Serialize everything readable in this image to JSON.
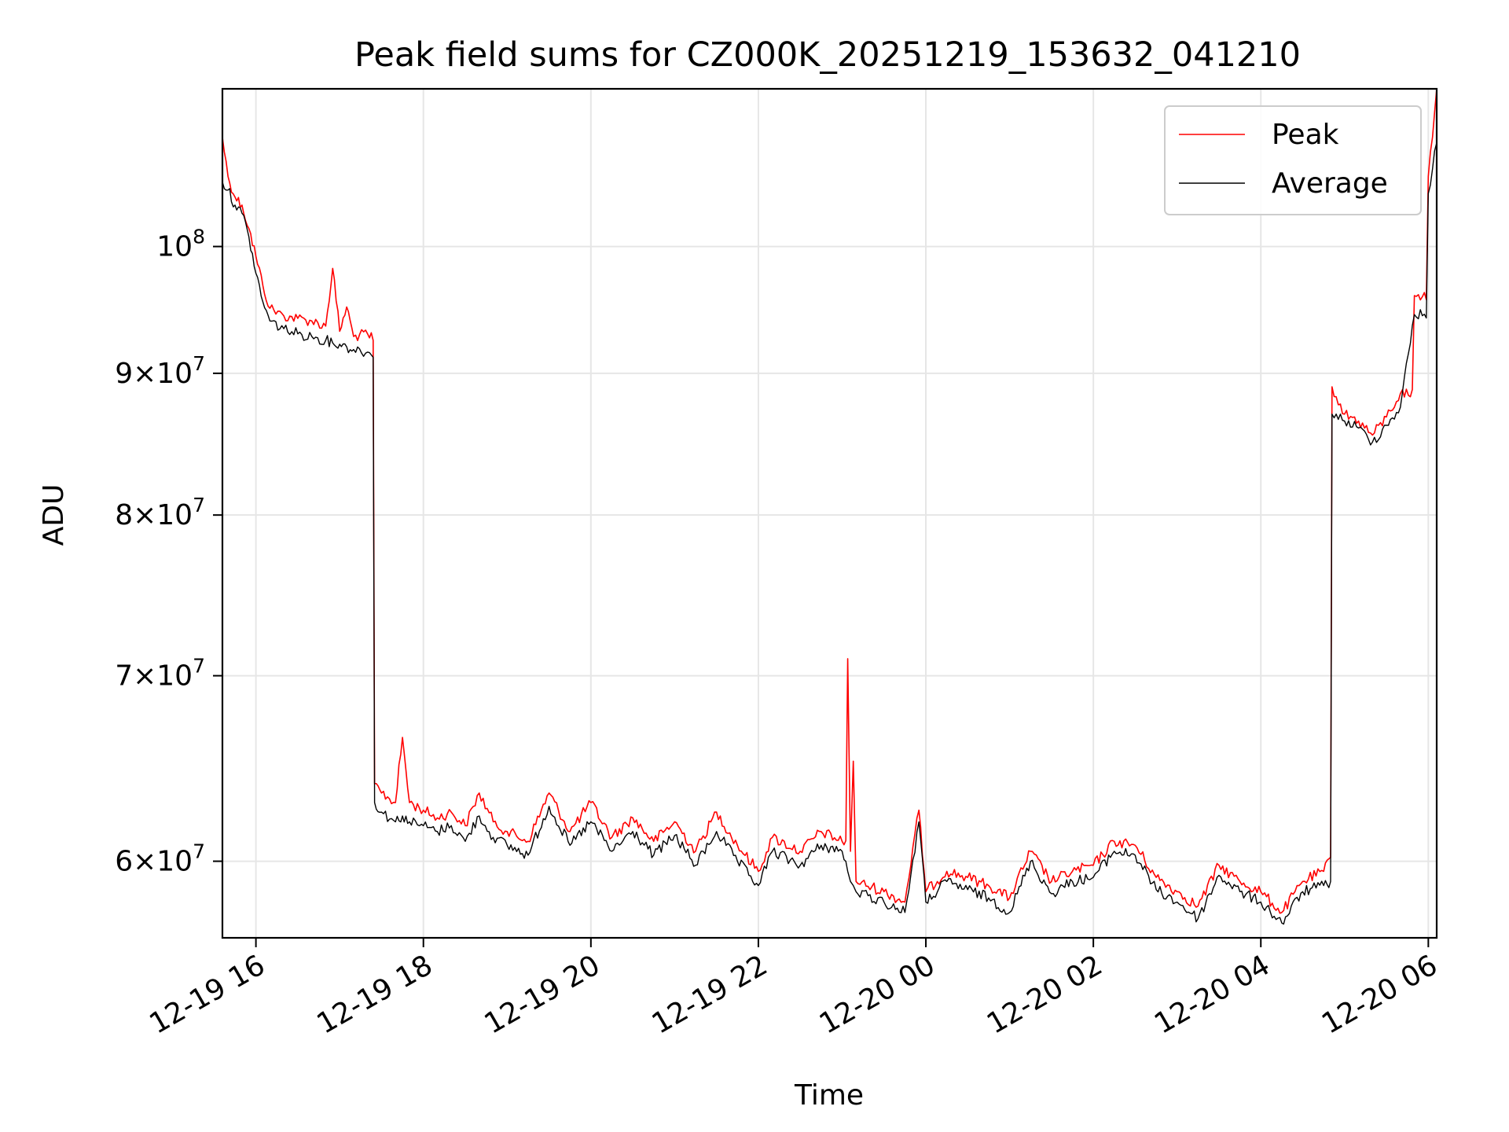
{
  "chart_data": {
    "type": "line",
    "title": "Peak field sums for CZ000K_20251219_153632_041210",
    "xlabel": "Time",
    "ylabel": "ADU",
    "y_scale": "log",
    "ylim": [
      56300000,
      114000000
    ],
    "xlim": [
      "12-19 15:36",
      "12-20 06:06"
    ],
    "grid": true,
    "legend_position": "top-right",
    "x_ticks": [
      {
        "t": "12-19 16:00",
        "label": "12-19 16"
      },
      {
        "t": "12-19 18:00",
        "label": "12-19 18"
      },
      {
        "t": "12-19 20:00",
        "label": "12-19 20"
      },
      {
        "t": "12-19 22:00",
        "label": "12-19 22"
      },
      {
        "t": "12-20 00:00",
        "label": "12-20 00"
      },
      {
        "t": "12-20 02:00",
        "label": "12-20 02"
      },
      {
        "t": "12-20 04:00",
        "label": "12-20 04"
      },
      {
        "t": "12-20 06:00",
        "label": "12-20 06"
      }
    ],
    "y_ticks": [
      {
        "value": 60000000,
        "mant": "6",
        "exp": "7"
      },
      {
        "value": 70000000,
        "mant": "7",
        "exp": "7"
      },
      {
        "value": 80000000,
        "mant": "8",
        "exp": "7"
      },
      {
        "value": 90000000,
        "mant": "9",
        "exp": "7"
      },
      {
        "value": 100000000,
        "mant": "",
        "exp": "8"
      }
    ],
    "series": [
      {
        "name": "Peak",
        "color": "#ff0000",
        "points": [
          [
            "12-19 15:36",
            109500000
          ],
          [
            "12-19 15:40",
            106000000
          ],
          [
            "12-19 15:45",
            104200000
          ],
          [
            "12-19 15:50",
            103500000
          ],
          [
            "12-19 15:55",
            101500000
          ],
          [
            "12-19 16:00",
            99200000
          ],
          [
            "12-19 16:05",
            96800000
          ],
          [
            "12-19 16:10",
            95000000
          ],
          [
            "12-19 16:20",
            94400000
          ],
          [
            "12-19 16:30",
            94200000
          ],
          [
            "12-19 16:40",
            94000000
          ],
          [
            "12-19 16:50",
            93600000
          ],
          [
            "12-19 16:55",
            98200000
          ],
          [
            "12-19 17:00",
            93200000
          ],
          [
            "12-19 17:05",
            95100000
          ],
          [
            "12-19 17:10",
            92800000
          ],
          [
            "12-19 17:20",
            93000000
          ],
          [
            "12-19 17:24",
            92500000
          ],
          [
            "12-19 17:25",
            64000000
          ],
          [
            "12-19 17:30",
            63500000
          ],
          [
            "12-19 17:40",
            63000000
          ],
          [
            "12-19 17:45",
            66500000
          ],
          [
            "12-19 17:50",
            63000000
          ],
          [
            "12-19 18:00",
            62600000
          ],
          [
            "12-19 18:10",
            62200000
          ],
          [
            "12-19 18:20",
            62500000
          ],
          [
            "12-19 18:30",
            61800000
          ],
          [
            "12-19 18:40",
            63500000
          ],
          [
            "12-19 18:50",
            62000000
          ],
          [
            "12-19 19:00",
            61500000
          ],
          [
            "12-19 19:15",
            61000000
          ],
          [
            "12-19 19:30",
            63500000
          ],
          [
            "12-19 19:45",
            61500000
          ],
          [
            "12-19 20:00",
            63000000
          ],
          [
            "12-19 20:15",
            61200000
          ],
          [
            "12-19 20:30",
            62200000
          ],
          [
            "12-19 20:45",
            61000000
          ],
          [
            "12-19 21:00",
            62000000
          ],
          [
            "12-19 21:15",
            60500000
          ],
          [
            "12-19 21:30",
            62500000
          ],
          [
            "12-19 21:45",
            60800000
          ],
          [
            "12-19 22:00",
            59500000
          ],
          [
            "12-19 22:10",
            61200000
          ],
          [
            "12-19 22:30",
            60500000
          ],
          [
            "12-19 22:45",
            61500000
          ],
          [
            "12-19 23:00",
            61000000
          ],
          [
            "12-19 23:04",
            71000000
          ],
          [
            "12-19 23:06",
            60500000
          ],
          [
            "12-19 23:08",
            65200000
          ],
          [
            "12-19 23:10",
            59000000
          ],
          [
            "12-19 23:30",
            58500000
          ],
          [
            "12-19 23:45",
            58000000
          ],
          [
            "12-19 23:55",
            62600000
          ],
          [
            "12-20 00:00",
            58500000
          ],
          [
            "12-20 00:15",
            59500000
          ],
          [
            "12-20 00:30",
            59200000
          ],
          [
            "12-20 00:45",
            58800000
          ],
          [
            "12-20 01:00",
            58200000
          ],
          [
            "12-20 01:15",
            60500000
          ],
          [
            "12-20 01:30",
            59000000
          ],
          [
            "12-20 01:45",
            59500000
          ],
          [
            "12-20 02:00",
            59800000
          ],
          [
            "12-20 02:15",
            61000000
          ],
          [
            "12-20 02:30",
            60800000
          ],
          [
            "12-20 02:45",
            59200000
          ],
          [
            "12-20 03:00",
            58500000
          ],
          [
            "12-20 03:15",
            57800000
          ],
          [
            "12-20 03:30",
            59800000
          ],
          [
            "12-20 03:45",
            59000000
          ],
          [
            "12-20 04:00",
            58500000
          ],
          [
            "12-20 04:15",
            57500000
          ],
          [
            "12-20 04:30",
            59000000
          ],
          [
            "12-20 04:45",
            59500000
          ],
          [
            "12-20 04:50",
            60200000
          ],
          [
            "12-20 04:51",
            89000000
          ],
          [
            "12-20 05:00",
            87000000
          ],
          [
            "12-20 05:10",
            86500000
          ],
          [
            "12-20 05:20",
            85500000
          ],
          [
            "12-20 05:30",
            86800000
          ],
          [
            "12-20 05:40",
            88500000
          ],
          [
            "12-20 05:50",
            96000000
          ],
          [
            "12-20 06:00",
            106000000
          ],
          [
            "12-20 06:06",
            114000000
          ]
        ]
      },
      {
        "name": "Average",
        "color": "#000000",
        "points": [
          [
            "12-19 15:36",
            105500000
          ],
          [
            "12-19 15:40",
            104800000
          ],
          [
            "12-19 15:45",
            103500000
          ],
          [
            "12-19 15:50",
            102800000
          ],
          [
            "12-19 15:55",
            100800000
          ],
          [
            "12-19 16:00",
            97800000
          ],
          [
            "12-19 16:05",
            95500000
          ],
          [
            "12-19 16:10",
            94000000
          ],
          [
            "12-19 16:20",
            93400000
          ],
          [
            "12-19 16:30",
            93000000
          ],
          [
            "12-19 16:40",
            92800000
          ],
          [
            "12-19 16:50",
            92500000
          ],
          [
            "12-19 16:55",
            92300000
          ],
          [
            "12-19 17:00",
            92200000
          ],
          [
            "12-19 17:05",
            92000000
          ],
          [
            "12-19 17:10",
            91800000
          ],
          [
            "12-19 17:20",
            91600000
          ],
          [
            "12-19 17:24",
            91200000
          ],
          [
            "12-19 17:25",
            63000000
          ],
          [
            "12-19 17:30",
            62500000
          ],
          [
            "12-19 17:40",
            62000000
          ],
          [
            "12-19 17:45",
            62300000
          ],
          [
            "12-19 17:50",
            62000000
          ],
          [
            "12-19 18:00",
            61800000
          ],
          [
            "12-19 18:10",
            61500000
          ],
          [
            "12-19 18:20",
            61800000
          ],
          [
            "12-19 18:30",
            61000000
          ],
          [
            "12-19 18:40",
            62300000
          ],
          [
            "12-19 18:50",
            61200000
          ],
          [
            "12-19 19:00",
            60800000
          ],
          [
            "12-19 19:15",
            60300000
          ],
          [
            "12-19 19:30",
            62800000
          ],
          [
            "12-19 19:45",
            60800000
          ],
          [
            "12-19 20:00",
            62000000
          ],
          [
            "12-19 20:15",
            60500000
          ],
          [
            "12-19 20:30",
            61500000
          ],
          [
            "12-19 20:45",
            60300000
          ],
          [
            "12-19 21:00",
            61300000
          ],
          [
            "12-19 21:15",
            59800000
          ],
          [
            "12-19 21:30",
            61500000
          ],
          [
            "12-19 21:45",
            60000000
          ],
          [
            "12-19 22:00",
            58800000
          ],
          [
            "12-19 22:10",
            60500000
          ],
          [
            "12-19 22:30",
            59800000
          ],
          [
            "12-19 22:45",
            60800000
          ],
          [
            "12-19 23:00",
            60500000
          ],
          [
            "12-19 23:04",
            59500000
          ],
          [
            "12-19 23:06",
            59000000
          ],
          [
            "12-19 23:08",
            58800000
          ],
          [
            "12-19 23:10",
            58500000
          ],
          [
            "12-19 23:30",
            58000000
          ],
          [
            "12-19 23:45",
            57500000
          ],
          [
            "12-19 23:55",
            62000000
          ],
          [
            "12-20 00:00",
            58000000
          ],
          [
            "12-20 00:15",
            59000000
          ],
          [
            "12-20 00:30",
            58600000
          ],
          [
            "12-20 00:45",
            58200000
          ],
          [
            "12-20 01:00",
            57500000
          ],
          [
            "12-20 01:15",
            60000000
          ],
          [
            "12-20 01:30",
            58400000
          ],
          [
            "12-20 01:45",
            59000000
          ],
          [
            "12-20 02:00",
            59200000
          ],
          [
            "12-20 02:15",
            60500000
          ],
          [
            "12-20 02:30",
            60300000
          ],
          [
            "12-20 02:45",
            58600000
          ],
          [
            "12-20 03:00",
            58000000
          ],
          [
            "12-20 03:15",
            57200000
          ],
          [
            "12-20 03:30",
            59300000
          ],
          [
            "12-20 03:45",
            58500000
          ],
          [
            "12-20 04:00",
            58000000
          ],
          [
            "12-20 04:15",
            57000000
          ],
          [
            "12-20 04:30",
            58500000
          ],
          [
            "12-20 04:45",
            58800000
          ],
          [
            "12-20 04:50",
            59000000
          ],
          [
            "12-20 04:51",
            87000000
          ],
          [
            "12-20 05:00",
            86500000
          ],
          [
            "12-20 05:10",
            86000000
          ],
          [
            "12-20 05:20",
            85000000
          ],
          [
            "12-20 05:30",
            86200000
          ],
          [
            "12-20 05:40",
            87500000
          ],
          [
            "12-20 05:50",
            94500000
          ],
          [
            "12-20 06:00",
            104500000
          ],
          [
            "12-20 06:06",
            109000000
          ]
        ]
      }
    ]
  }
}
